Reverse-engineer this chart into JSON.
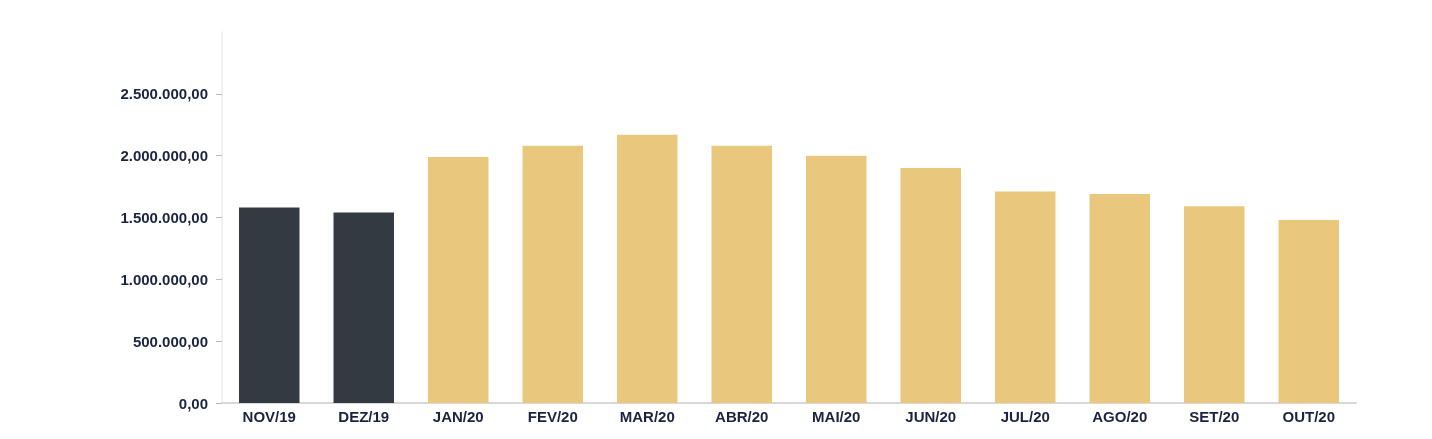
{
  "chart_data": {
    "type": "bar",
    "categories": [
      "NOV/19",
      "DEZ/19",
      "JAN/20",
      "FEV/20",
      "MAR/20",
      "ABR/20",
      "MAI/20",
      "JUN/20",
      "JUL/20",
      "AGO/20",
      "SET/20",
      "OUT/20"
    ],
    "values": [
      1580000,
      1540000,
      1990000,
      2080000,
      2170000,
      2080000,
      2000000,
      1900000,
      1710000,
      1690000,
      1590000,
      1480000
    ],
    "colors": [
      "#343a42",
      "#343a42",
      "#e9c87d",
      "#e9c87d",
      "#e9c87d",
      "#e9c87d",
      "#e9c87d",
      "#e9c87d",
      "#e9c87d",
      "#e9c87d",
      "#e9c87d",
      "#e9c87d"
    ],
    "ylim": [
      0,
      3000000
    ],
    "yticks": [
      {
        "value": 0,
        "label": "0,00"
      },
      {
        "value": 500000,
        "label": "500.000,00"
      },
      {
        "value": 1000000,
        "label": "1.000.000,00"
      },
      {
        "value": 1500000,
        "label": "1.500.000,00"
      },
      {
        "value": 2000000,
        "label": "2.000.000,00"
      },
      {
        "value": 2500000,
        "label": "2.500.000,00"
      }
    ],
    "grid": false
  }
}
